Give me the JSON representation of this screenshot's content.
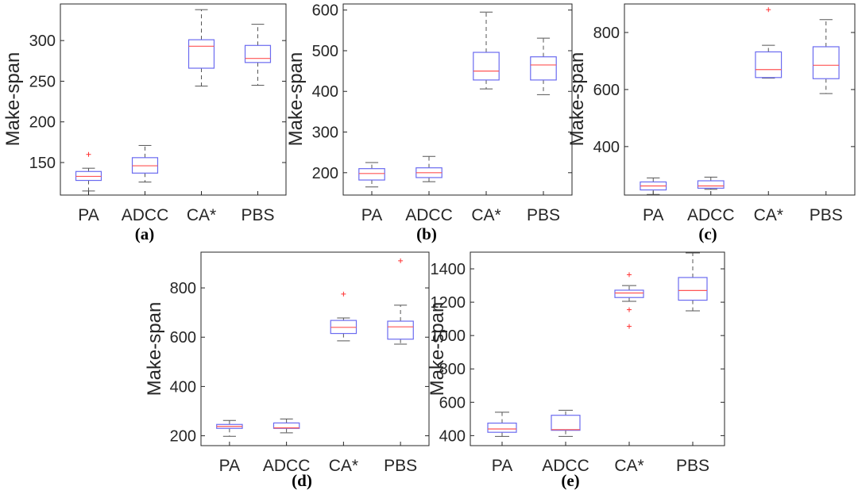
{
  "style": {
    "box_color": "#6b6bf0",
    "median_color": "#ff5555",
    "whisker_color": "#555555",
    "outlier_color": "#ff3333",
    "axis_color": "#262626"
  },
  "chart_data": [
    {
      "type": "box",
      "caption": "(a)",
      "ylabel": "Make-span",
      "categories": [
        "PA",
        "ADCC",
        "CA*",
        "PBS"
      ],
      "ylim": [
        110,
        345
      ],
      "yticks": [
        150,
        200,
        250,
        300
      ],
      "boxes": [
        {
          "min": 115,
          "q1": 128,
          "median": 133,
          "q3": 139,
          "max": 143,
          "outliers": [
            160
          ]
        },
        {
          "min": 126,
          "q1": 137,
          "median": 146,
          "q3": 156,
          "max": 171,
          "outliers": []
        },
        {
          "min": 244,
          "q1": 266,
          "median": 293,
          "q3": 301,
          "max": 338,
          "outliers": []
        },
        {
          "min": 245,
          "q1": 273,
          "median": 278,
          "q3": 294,
          "max": 320,
          "outliers": []
        }
      ]
    },
    {
      "type": "box",
      "caption": "(b)",
      "ylabel": "Make-span",
      "categories": [
        "PA",
        "ADCC",
        "CA*",
        "PBS"
      ],
      "ylim": [
        145,
        615
      ],
      "yticks": [
        200,
        300,
        400,
        500,
        600
      ],
      "boxes": [
        {
          "min": 165,
          "q1": 182,
          "median": 198,
          "q3": 210,
          "max": 225,
          "outliers": []
        },
        {
          "min": 178,
          "q1": 188,
          "median": 200,
          "q3": 212,
          "max": 240,
          "outliers": []
        },
        {
          "min": 406,
          "q1": 428,
          "median": 450,
          "q3": 496,
          "max": 595,
          "outliers": []
        },
        {
          "min": 392,
          "q1": 428,
          "median": 465,
          "q3": 485,
          "max": 531,
          "outliers": []
        }
      ]
    },
    {
      "type": "box",
      "caption": "(c)",
      "ylabel": "Make-span",
      "categories": [
        "PA",
        "ADCC",
        "CA*",
        "PBS"
      ],
      "ylim": [
        230,
        900
      ],
      "yticks": [
        400,
        600,
        800
      ],
      "boxes": [
        {
          "min": 232,
          "q1": 248,
          "median": 262,
          "q3": 276,
          "max": 290,
          "outliers": []
        },
        {
          "min": 250,
          "q1": 254,
          "median": 262,
          "q3": 280,
          "max": 293,
          "outliers": []
        },
        {
          "min": 640,
          "q1": 642,
          "median": 670,
          "q3": 732,
          "max": 755,
          "outliers": [
            880
          ]
        },
        {
          "min": 586,
          "q1": 638,
          "median": 685,
          "q3": 750,
          "max": 845,
          "outliers": []
        }
      ]
    },
    {
      "type": "box",
      "caption": "(d)",
      "ylabel": "Make-span",
      "categories": [
        "PA",
        "ADCC",
        "CA*",
        "PBS"
      ],
      "ylim": [
        160,
        945
      ],
      "yticks": [
        200,
        400,
        600,
        800
      ],
      "boxes": [
        {
          "min": 198,
          "q1": 230,
          "median": 238,
          "q3": 246,
          "max": 262,
          "outliers": []
        },
        {
          "min": 212,
          "q1": 230,
          "median": 232,
          "q3": 252,
          "max": 268,
          "outliers": []
        },
        {
          "min": 585,
          "q1": 615,
          "median": 640,
          "q3": 668,
          "max": 678,
          "outliers": [
            775
          ]
        },
        {
          "min": 572,
          "q1": 592,
          "median": 642,
          "q3": 665,
          "max": 730,
          "outliers": [
            910
          ]
        }
      ]
    },
    {
      "type": "box",
      "caption": "(e)",
      "ylabel": "Make-span",
      "categories": [
        "PA",
        "ADCC",
        "CA*",
        "PBS"
      ],
      "ylim": [
        340,
        1500
      ],
      "yticks": [
        400,
        600,
        800,
        1000,
        1200,
        1400
      ],
      "boxes": [
        {
          "min": 395,
          "q1": 420,
          "median": 440,
          "q3": 475,
          "max": 540,
          "outliers": []
        },
        {
          "min": 395,
          "q1": 432,
          "median": 436,
          "q3": 522,
          "max": 552,
          "outliers": []
        },
        {
          "min": 1205,
          "q1": 1228,
          "median": 1255,
          "q3": 1272,
          "max": 1300,
          "outliers": [
            1365,
            1155,
            1055
          ]
        },
        {
          "min": 1148,
          "q1": 1212,
          "median": 1270,
          "q3": 1348,
          "max": 1495,
          "outliers": []
        }
      ]
    }
  ]
}
